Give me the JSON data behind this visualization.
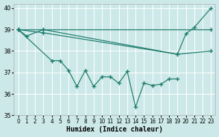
{
  "xlabel": "Humidex (Indice chaleur)",
  "bg_color": "#cce8e8",
  "grid_color": "#ffffff",
  "line_color": "#1a7a6a",
  "xlim": [
    -0.5,
    23.5
  ],
  "ylim": [
    35.0,
    40.2
  ],
  "xticks": [
    0,
    1,
    2,
    3,
    4,
    5,
    6,
    7,
    8,
    9,
    10,
    11,
    12,
    13,
    14,
    15,
    16,
    17,
    18,
    19,
    20,
    21,
    22,
    23
  ],
  "yticks": [
    35,
    36,
    37,
    38,
    39,
    40
  ],
  "series": [
    {
      "x": [
        0,
        1,
        3,
        19,
        20,
        21,
        23
      ],
      "y": [
        39.0,
        38.7,
        39.0,
        37.85,
        38.8,
        39.1,
        40.0
      ]
    },
    {
      "x": [
        0,
        3,
        23
      ],
      "y": [
        39.0,
        39.0,
        39.0
      ]
    },
    {
      "x": [
        0,
        3,
        19,
        23
      ],
      "y": [
        39.0,
        38.85,
        37.85,
        38.0
      ]
    },
    {
      "x": [
        0,
        4,
        5,
        6,
        7,
        8,
        9,
        10,
        11,
        12,
        13,
        14,
        15,
        16,
        17,
        18,
        19
      ],
      "y": [
        39.0,
        37.55,
        37.55,
        37.1,
        36.35,
        37.1,
        36.35,
        36.8,
        36.8,
        36.5,
        37.05,
        35.4,
        36.5,
        36.4,
        36.45,
        36.7,
        36.7
      ]
    }
  ]
}
